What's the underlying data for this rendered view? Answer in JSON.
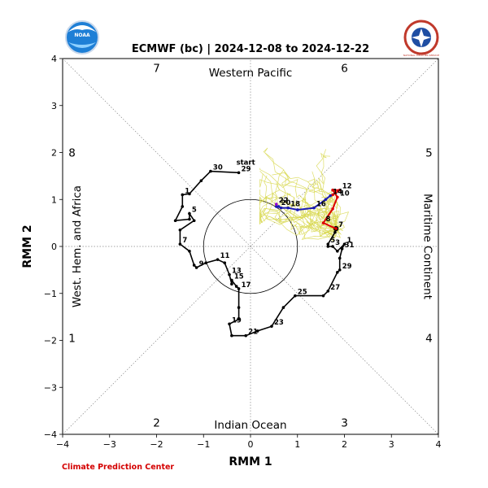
{
  "chart_data": {
    "type": "line",
    "title": "ECMWF (bc) | 2024-12-08 to 2024-12-22",
    "xlabel": "RMM 1",
    "ylabel": "RMM 2",
    "xlim": [
      -4,
      4
    ],
    "ylim": [
      -4,
      4
    ],
    "xticks": [
      "−4",
      "−3",
      "−2",
      "−1",
      "0",
      "1",
      "2",
      "3",
      "4"
    ],
    "yticks": [
      "−4",
      "−3",
      "−2",
      "−1",
      "0",
      "1",
      "2",
      "3",
      "4"
    ],
    "regions": {
      "top": "Western Pacific",
      "bottom": "Indian Ocean",
      "left": "West. Hem. and Africa",
      "right": "Maritime Continent"
    },
    "phases": [
      {
        "label": "1",
        "x": -3.8,
        "y": -1.95
      },
      {
        "label": "2",
        "x": -2.0,
        "y": -3.75
      },
      {
        "label": "3",
        "x": 2.0,
        "y": -3.75
      },
      {
        "label": "4",
        "x": 3.8,
        "y": -1.95
      },
      {
        "label": "5",
        "x": 3.8,
        "y": 2.0
      },
      {
        "label": "6",
        "x": 2.0,
        "y": 3.8
      },
      {
        "label": "7",
        "x": -2.0,
        "y": 3.8
      },
      {
        "label": "8",
        "x": -3.8,
        "y": 2.0
      }
    ],
    "unit_circle_radius": 1,
    "observed": {
      "color": "#000000",
      "start_label": "start",
      "points": [
        {
          "x": -0.25,
          "y": 1.57,
          "label": "29"
        },
        {
          "x": -0.85,
          "y": 1.6,
          "label": "30"
        },
        {
          "x": -1.05,
          "y": 1.4,
          "label": ""
        },
        {
          "x": -1.3,
          "y": 1.12,
          "label": ""
        },
        {
          "x": -1.45,
          "y": 1.1,
          "label": "1"
        },
        {
          "x": -1.45,
          "y": 0.85,
          "label": ""
        },
        {
          "x": -1.6,
          "y": 0.55,
          "label": ""
        },
        {
          "x": -1.3,
          "y": 0.58,
          "label": ""
        },
        {
          "x": -1.3,
          "y": 0.7,
          "label": "5"
        },
        {
          "x": -1.2,
          "y": 0.55,
          "label": ""
        },
        {
          "x": -1.5,
          "y": 0.35,
          "label": ""
        },
        {
          "x": -1.5,
          "y": 0.05,
          "label": "7"
        },
        {
          "x": -1.3,
          "y": -0.1,
          "label": ""
        },
        {
          "x": -1.2,
          "y": -0.4,
          "label": ""
        },
        {
          "x": -1.15,
          "y": -0.45,
          "label": "9"
        },
        {
          "x": -0.95,
          "y": -0.35,
          "label": ""
        },
        {
          "x": -0.7,
          "y": -0.28,
          "label": "11"
        },
        {
          "x": -0.55,
          "y": -0.35,
          "label": ""
        },
        {
          "x": -0.45,
          "y": -0.6,
          "label": "13"
        },
        {
          "x": -0.4,
          "y": -0.8,
          "label": ""
        },
        {
          "x": -0.4,
          "y": -0.72,
          "label": "15"
        },
        {
          "x": -0.3,
          "y": -0.85,
          "label": ""
        },
        {
          "x": -0.25,
          "y": -0.9,
          "label": "17"
        },
        {
          "x": -0.25,
          "y": -1.3,
          "label": ""
        },
        {
          "x": -0.25,
          "y": -1.55,
          "label": ""
        },
        {
          "x": -0.45,
          "y": -1.65,
          "label": "19"
        },
        {
          "x": -0.4,
          "y": -1.9,
          "label": ""
        },
        {
          "x": -0.1,
          "y": -1.9,
          "label": "21"
        },
        {
          "x": 0.15,
          "y": -1.8,
          "label": ""
        },
        {
          "x": 0.45,
          "y": -1.7,
          "label": "23"
        },
        {
          "x": 0.7,
          "y": -1.3,
          "label": ""
        },
        {
          "x": 0.95,
          "y": -1.05,
          "label": "25"
        },
        {
          "x": 1.55,
          "y": -1.05,
          "label": ""
        },
        {
          "x": 1.65,
          "y": -0.95,
          "label": "27"
        },
        {
          "x": 1.85,
          "y": -0.55,
          "label": ""
        },
        {
          "x": 1.9,
          "y": -0.5,
          "label": "29"
        },
        {
          "x": 1.9,
          "y": -0.25,
          "label": ""
        },
        {
          "x": 1.95,
          "y": -0.05,
          "label": "31"
        },
        {
          "x": 2.0,
          "y": 0.05,
          "label": "1"
        },
        {
          "x": 1.85,
          "y": -0.1,
          "label": ""
        },
        {
          "x": 1.75,
          "y": 0.0,
          "label": "3"
        },
        {
          "x": 1.65,
          "y": 0.0,
          "label": ""
        },
        {
          "x": 1.65,
          "y": 0.05,
          "label": "5"
        },
        {
          "x": 1.8,
          "y": 0.3,
          "label": ""
        },
        {
          "x": 1.82,
          "y": 0.38,
          "label": "7"
        }
      ]
    },
    "forecast_ensemble_mean": [
      {
        "x": 1.82,
        "y": 0.38,
        "label": "",
        "color": "#dd0000"
      },
      {
        "x": 1.55,
        "y": 0.5,
        "label": "8",
        "color": "#dd0000"
      },
      {
        "x": 1.75,
        "y": 0.8,
        "label": "",
        "color": "#dd0000"
      },
      {
        "x": 1.85,
        "y": 1.05,
        "label": "10",
        "color": "#dd0000"
      },
      {
        "x": 1.75,
        "y": 1.2,
        "label": "",
        "color": "#dd0000"
      },
      {
        "x": 1.9,
        "y": 1.2,
        "label": "12",
        "color": "#dd0000"
      },
      {
        "x": 1.75,
        "y": 1.1,
        "label": "",
        "color": "#dd0000"
      },
      {
        "x": 1.7,
        "y": 1.08,
        "label": "14",
        "color": "#1a1ab3"
      },
      {
        "x": 1.6,
        "y": 1.0,
        "label": "",
        "color": "#1a1ab3"
      },
      {
        "x": 1.35,
        "y": 0.82,
        "label": "16",
        "color": "#1a1ab3"
      },
      {
        "x": 1.0,
        "y": 0.78,
        "label": "",
        "color": "#1a1ab3"
      },
      {
        "x": 0.8,
        "y": 0.82,
        "label": "18",
        "color": "#1a1ab3"
      },
      {
        "x": 0.65,
        "y": 0.82,
        "label": "",
        "color": "#1a1ab3"
      },
      {
        "x": 0.6,
        "y": 0.85,
        "label": "20",
        "color": "#1a1ab3"
      },
      {
        "x": 0.55,
        "y": 0.85,
        "label": "",
        "color": "#1a1ab3"
      },
      {
        "x": 0.55,
        "y": 0.9,
        "label": "22",
        "color": "#9400d3"
      }
    ],
    "ensemble_members": {
      "color": "#d8d850",
      "count": 30
    },
    "credit": "Climate Prediction Center"
  },
  "logos": {
    "left": "NOAA",
    "right": "NATIONAL WEATHER SERVICE"
  }
}
